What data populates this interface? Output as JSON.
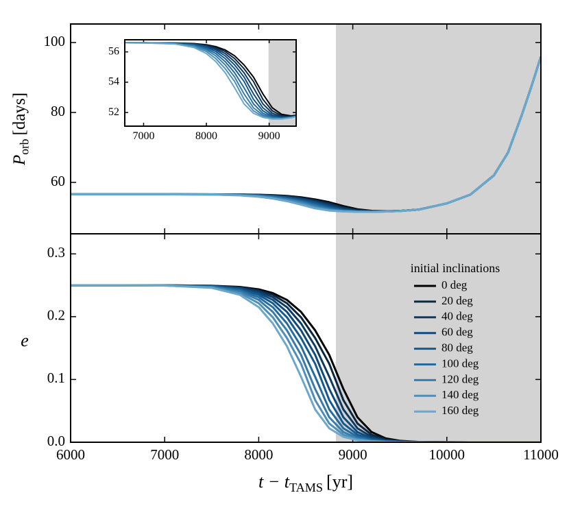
{
  "chart_data": [
    {
      "type": "line",
      "ylabel": {
        "symbol": "P",
        "subscript": "orb",
        "unit": "[days]"
      },
      "x": [
        6000,
        6500,
        7000,
        7500,
        7800,
        8000,
        8150,
        8300,
        8450,
        8600,
        8750,
        8900,
        9050,
        9200,
        9350,
        9500,
        9700,
        10000,
        10250,
        10500,
        10650,
        10800,
        10900,
        11000
      ],
      "xlim": [
        6000,
        11000
      ],
      "xticks": [
        6000,
        7000,
        8000,
        9000,
        10000,
        11000
      ],
      "show_xtick_labels": false,
      "ylim": [
        45.3,
        105.3
      ],
      "yticks": [
        60,
        80,
        100
      ],
      "shaded_xlim": [
        8820,
        11000
      ],
      "shade_color": "#d3d3d3",
      "series": [
        {
          "color": "#000000",
          "values": [
            56.6,
            56.6,
            56.6,
            56.59,
            56.55,
            56.47,
            56.35,
            56.13,
            55.74,
            55.14,
            54.34,
            53.23,
            52.31,
            51.88,
            51.78,
            51.85,
            52.21,
            54.0,
            56.5,
            62.0,
            68.5,
            79.5,
            87.5,
            96.0
          ]
        },
        {
          "color": "#0b2740",
          "values": [
            56.6,
            56.6,
            56.6,
            56.58,
            56.53,
            56.44,
            56.29,
            56.02,
            55.56,
            54.89,
            54.05,
            52.87,
            52.11,
            51.79,
            51.74,
            51.84,
            52.21,
            54.0,
            56.5,
            62.0,
            68.5,
            79.5,
            87.5,
            96.0
          ]
        },
        {
          "color": "#0f3a60",
          "values": [
            56.6,
            56.6,
            56.6,
            56.58,
            56.52,
            56.4,
            56.21,
            55.89,
            55.36,
            54.62,
            53.63,
            52.57,
            51.95,
            51.73,
            51.72,
            51.82,
            52.21,
            54.0,
            56.5,
            62.0,
            68.5,
            79.5,
            87.5,
            96.0
          ]
        },
        {
          "color": "#104a7c",
          "values": [
            56.6,
            56.6,
            56.6,
            56.57,
            56.5,
            56.35,
            56.13,
            55.74,
            55.14,
            54.34,
            53.23,
            52.31,
            51.83,
            51.68,
            51.7,
            51.82,
            52.2,
            54.0,
            56.5,
            62.0,
            68.5,
            79.5,
            87.5,
            96.0
          ]
        },
        {
          "color": "#145a8f",
          "values": [
            56.6,
            56.6,
            56.6,
            56.57,
            56.47,
            56.29,
            56.02,
            55.56,
            54.89,
            54.05,
            52.87,
            52.11,
            51.74,
            51.64,
            51.69,
            51.81,
            52.2,
            54.0,
            56.5,
            62.0,
            68.5,
            79.5,
            87.5,
            96.0
          ]
        },
        {
          "color": "#256b9e",
          "values": [
            56.6,
            56.6,
            56.59,
            56.56,
            56.44,
            56.21,
            55.89,
            55.36,
            54.62,
            53.63,
            52.57,
            51.95,
            51.68,
            51.62,
            51.67,
            51.81,
            52.2,
            54.0,
            56.5,
            62.0,
            68.5,
            79.5,
            87.5,
            96.0
          ]
        },
        {
          "color": "#377caa",
          "values": [
            56.6,
            56.6,
            56.59,
            56.55,
            56.4,
            56.13,
            55.74,
            55.14,
            54.34,
            53.23,
            52.31,
            51.83,
            51.63,
            51.6,
            51.67,
            51.81,
            52.2,
            54.0,
            56.5,
            62.0,
            68.5,
            79.5,
            87.5,
            96.0
          ]
        },
        {
          "color": "#4d8fb8",
          "values": [
            56.6,
            56.6,
            56.59,
            56.53,
            56.35,
            56.02,
            55.56,
            54.89,
            54.05,
            52.87,
            52.11,
            51.74,
            51.59,
            51.59,
            51.66,
            51.8,
            52.2,
            54.0,
            56.5,
            62.0,
            68.5,
            79.5,
            87.5,
            96.0
          ]
        },
        {
          "color": "#6aa8cb",
          "values": [
            56.6,
            56.6,
            56.59,
            56.52,
            56.29,
            55.89,
            55.36,
            54.62,
            53.63,
            52.57,
            51.95,
            51.68,
            51.57,
            51.57,
            51.66,
            51.8,
            52.2,
            54.0,
            56.5,
            62.0,
            68.5,
            79.5,
            87.5,
            96.0
          ]
        }
      ],
      "inset": {
        "xlim": [
          6700,
          9430
        ],
        "xticks": [
          7000,
          8000,
          9000
        ],
        "ylim": [
          51.1,
          56.8
        ],
        "yticks": [
          52,
          54,
          56
        ],
        "shaded_xlim": [
          8990,
          9430
        ]
      }
    },
    {
      "type": "line",
      "xlabel": {
        "symbol": "t − t",
        "subscript": "TAMS",
        "unit": "[yr]"
      },
      "ylabel": "e",
      "x": [
        6000,
        6500,
        7000,
        7500,
        7800,
        8000,
        8150,
        8300,
        8450,
        8600,
        8750,
        8900,
        9050,
        9200,
        9350,
        9500,
        9700,
        10000,
        10250,
        10500,
        10650,
        10800,
        10900,
        11000
      ],
      "xlim": [
        6000,
        11000
      ],
      "xticks": [
        6000,
        7000,
        8000,
        9000,
        10000,
        11000
      ],
      "show_xtick_labels": true,
      "ylim": [
        0,
        0.332
      ],
      "yticks": [
        {
          "value": 0,
          "label": "0.0"
        },
        0.1,
        0.2,
        0.3
      ],
      "shaded_xlim": [
        8820,
        11000
      ],
      "shade_color": "#d3d3d3",
      "legend_title": "initial inclinations",
      "legend_loc": "right",
      "series": [
        {
          "name": "0 deg",
          "color": "#000000",
          "values": [
            0.25,
            0.25,
            0.2499,
            0.2493,
            0.2474,
            0.2436,
            0.2376,
            0.2267,
            0.2076,
            0.1782,
            0.1391,
            0.0848,
            0.0397,
            0.0162,
            0.0062,
            0.0023,
            0.0006,
            0.0001,
            0,
            0,
            0,
            0,
            0,
            0
          ]
        },
        {
          "name": "20 deg",
          "color": "#0b2740",
          "values": [
            0.25,
            0.25,
            0.2499,
            0.2492,
            0.2467,
            0.242,
            0.2347,
            0.2214,
            0.199,
            0.166,
            0.125,
            0.0672,
            0.0298,
            0.0119,
            0.0045,
            0.0017,
            0.0004,
            0.0001,
            0,
            0,
            0,
            0,
            0,
            0
          ]
        },
        {
          "name": "40 deg",
          "color": "#0f3a60",
          "values": [
            0.25,
            0.25,
            0.2499,
            0.2489,
            0.2459,
            0.24,
            0.231,
            0.2151,
            0.1892,
            0.1529,
            0.1043,
            0.0522,
            0.0221,
            0.0086,
            0.0032,
            0.0012,
            0.0003,
            0.0001,
            0,
            0,
            0,
            0,
            0,
            0
          ]
        },
        {
          "name": "60 deg",
          "color": "#104a7c",
          "values": [
            0.25,
            0.25,
            0.2498,
            0.2487,
            0.2449,
            0.2376,
            0.2267,
            0.2076,
            0.1782,
            0.1391,
            0.0848,
            0.0397,
            0.0162,
            0.0062,
            0.0023,
            0.0009,
            0.0002,
            0,
            0,
            0,
            0,
            0,
            0,
            0
          ]
        },
        {
          "name": "80 deg",
          "color": "#145a8f",
          "values": [
            0.25,
            0.25,
            0.2498,
            0.2483,
            0.2436,
            0.2347,
            0.2214,
            0.199,
            0.166,
            0.125,
            0.0672,
            0.0298,
            0.0119,
            0.0045,
            0.0017,
            0.0006,
            0.0002,
            0,
            0,
            0,
            0,
            0,
            0,
            0
          ]
        },
        {
          "name": "100 deg",
          "color": "#256b9e",
          "values": [
            0.25,
            0.25,
            0.2497,
            0.2479,
            0.242,
            0.231,
            0.2151,
            0.1892,
            0.1529,
            0.1043,
            0.0522,
            0.0221,
            0.0086,
            0.0032,
            0.0012,
            0.0004,
            0.0001,
            0,
            0,
            0,
            0,
            0,
            0,
            0
          ]
        },
        {
          "name": "120 deg",
          "color": "#377caa",
          "values": [
            0.25,
            0.25,
            0.2497,
            0.2474,
            0.24,
            0.2267,
            0.2076,
            0.1782,
            0.1391,
            0.0848,
            0.0397,
            0.0162,
            0.0062,
            0.0023,
            0.0009,
            0.0003,
            0.0001,
            0,
            0,
            0,
            0,
            0,
            0,
            0
          ]
        },
        {
          "name": "140 deg",
          "color": "#4d8fb8",
          "values": [
            0.25,
            0.25,
            0.2496,
            0.2467,
            0.2376,
            0.2214,
            0.199,
            0.166,
            0.125,
            0.0672,
            0.0298,
            0.0119,
            0.0045,
            0.0017,
            0.0006,
            0.0002,
            0.0001,
            0,
            0,
            0,
            0,
            0,
            0,
            0
          ]
        },
        {
          "name": "160 deg",
          "color": "#6aa8cb",
          "values": [
            0.25,
            0.25,
            0.2496,
            0.2459,
            0.2347,
            0.2151,
            0.1892,
            0.1529,
            0.1043,
            0.0522,
            0.0221,
            0.0086,
            0.0032,
            0.0012,
            0.0004,
            0.0002,
            0.0001,
            0,
            0,
            0,
            0,
            0,
            0,
            0
          ]
        }
      ]
    }
  ]
}
